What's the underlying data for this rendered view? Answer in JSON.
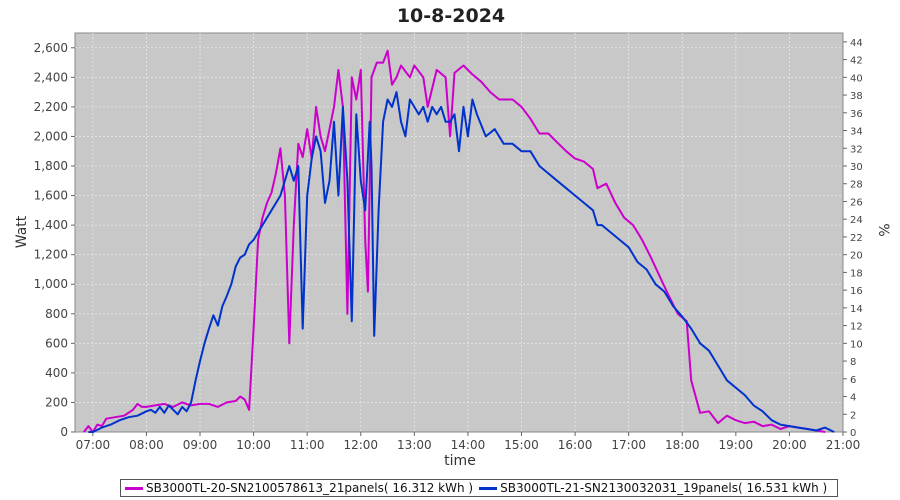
{
  "chart_data": {
    "type": "line",
    "title": "10-8-2024",
    "xlabel": "time",
    "ylabel": "Watt",
    "y2label": "%",
    "xlim": [
      "06:40",
      "21:00"
    ],
    "ylim": [
      0,
      2700
    ],
    "y2lim": [
      0,
      45
    ],
    "x_ticks": [
      "07:00",
      "08:00",
      "09:00",
      "10:00",
      "11:00",
      "12:00",
      "13:00",
      "14:00",
      "15:00",
      "16:00",
      "17:00",
      "18:00",
      "19:00",
      "20:00",
      "21:00"
    ],
    "y_ticks": [
      "0",
      "200",
      "400",
      "600",
      "800",
      "1,000",
      "1,200",
      "1,400",
      "1,600",
      "1,800",
      "2,000",
      "2,200",
      "2,400",
      "2,600"
    ],
    "y2_ticks": [
      "0",
      "2",
      "4",
      "6",
      "8",
      "10",
      "12",
      "14",
      "16",
      "18",
      "20",
      "22",
      "24",
      "26",
      "28",
      "30",
      "32",
      "34",
      "36",
      "38",
      "40",
      "42",
      "44"
    ],
    "grid": true,
    "legend_position": "bottom",
    "series": [
      {
        "name": "SB3000TL-20-SN2100578613_21panels( 16.312 kWh )",
        "color": "#cc00cc",
        "points": [
          [
            "06:50",
            0
          ],
          [
            "06:55",
            40
          ],
          [
            "07:00",
            0
          ],
          [
            "07:05",
            50
          ],
          [
            "07:10",
            40
          ],
          [
            "07:15",
            90
          ],
          [
            "07:25",
            100
          ],
          [
            "07:35",
            110
          ],
          [
            "07:45",
            150
          ],
          [
            "07:50",
            190
          ],
          [
            "07:55",
            170
          ],
          [
            "08:00",
            170
          ],
          [
            "08:10",
            180
          ],
          [
            "08:20",
            190
          ],
          [
            "08:30",
            170
          ],
          [
            "08:40",
            200
          ],
          [
            "08:50",
            180
          ],
          [
            "09:00",
            190
          ],
          [
            "09:10",
            190
          ],
          [
            "09:20",
            170
          ],
          [
            "09:30",
            200
          ],
          [
            "09:40",
            210
          ],
          [
            "09:45",
            240
          ],
          [
            "09:50",
            220
          ],
          [
            "09:55",
            150
          ],
          [
            "10:00",
            700
          ],
          [
            "10:05",
            1300
          ],
          [
            "10:10",
            1450
          ],
          [
            "10:15",
            1550
          ],
          [
            "10:20",
            1620
          ],
          [
            "10:25",
            1750
          ],
          [
            "10:30",
            1920
          ],
          [
            "10:35",
            1600
          ],
          [
            "10:40",
            600
          ],
          [
            "10:45",
            1400
          ],
          [
            "10:50",
            1950
          ],
          [
            "10:55",
            1860
          ],
          [
            "11:00",
            2050
          ],
          [
            "11:05",
            1850
          ],
          [
            "11:10",
            2200
          ],
          [
            "11:15",
            2000
          ],
          [
            "11:20",
            1900
          ],
          [
            "11:25",
            2050
          ],
          [
            "11:30",
            2200
          ],
          [
            "11:35",
            2450
          ],
          [
            "11:40",
            2200
          ],
          [
            "11:45",
            800
          ],
          [
            "11:50",
            2400
          ],
          [
            "11:55",
            2250
          ],
          [
            "12:00",
            2450
          ],
          [
            "12:05",
            1300
          ],
          [
            "12:08",
            950
          ],
          [
            "12:12",
            2400
          ],
          [
            "12:18",
            2500
          ],
          [
            "12:25",
            2500
          ],
          [
            "12:30",
            2580
          ],
          [
            "12:35",
            2350
          ],
          [
            "12:40",
            2400
          ],
          [
            "12:45",
            2480
          ],
          [
            "12:55",
            2400
          ],
          [
            "13:00",
            2480
          ],
          [
            "13:10",
            2400
          ],
          [
            "13:15",
            2200
          ],
          [
            "13:25",
            2450
          ],
          [
            "13:35",
            2400
          ],
          [
            "13:40",
            2000
          ],
          [
            "13:45",
            2430
          ],
          [
            "13:55",
            2480
          ],
          [
            "14:05",
            2420
          ],
          [
            "14:15",
            2370
          ],
          [
            "14:25",
            2300
          ],
          [
            "14:35",
            2250
          ],
          [
            "14:50",
            2250
          ],
          [
            "15:00",
            2200
          ],
          [
            "15:10",
            2120
          ],
          [
            "15:20",
            2020
          ],
          [
            "15:30",
            2020
          ],
          [
            "15:40",
            1960
          ],
          [
            "15:50",
            1900
          ],
          [
            "16:00",
            1850
          ],
          [
            "16:10",
            1830
          ],
          [
            "16:20",
            1780
          ],
          [
            "16:25",
            1650
          ],
          [
            "16:35",
            1680
          ],
          [
            "16:45",
            1550
          ],
          [
            "16:55",
            1450
          ],
          [
            "17:05",
            1400
          ],
          [
            "17:15",
            1300
          ],
          [
            "17:25",
            1180
          ],
          [
            "17:35",
            1050
          ],
          [
            "17:45",
            920
          ],
          [
            "17:55",
            800
          ],
          [
            "18:05",
            750
          ],
          [
            "18:10",
            350
          ],
          [
            "18:20",
            130
          ],
          [
            "18:30",
            140
          ],
          [
            "18:40",
            60
          ],
          [
            "18:50",
            110
          ],
          [
            "19:00",
            80
          ],
          [
            "19:10",
            60
          ],
          [
            "19:20",
            70
          ],
          [
            "19:30",
            40
          ],
          [
            "19:40",
            50
          ],
          [
            "19:50",
            20
          ],
          [
            "20:00",
            40
          ],
          [
            "20:10",
            30
          ],
          [
            "20:20",
            20
          ],
          [
            "20:30",
            10
          ],
          [
            "20:40",
            0
          ]
        ]
      },
      {
        "name": "SB3000TL-21-SN2130032031_19panels( 16.531 kWh )",
        "color": "#0033cc",
        "points": [
          [
            "06:55",
            0
          ],
          [
            "07:00",
            0
          ],
          [
            "07:10",
            30
          ],
          [
            "07:20",
            50
          ],
          [
            "07:30",
            80
          ],
          [
            "07:40",
            100
          ],
          [
            "07:50",
            110
          ],
          [
            "08:00",
            140
          ],
          [
            "08:05",
            150
          ],
          [
            "08:10",
            130
          ],
          [
            "08:15",
            170
          ],
          [
            "08:20",
            130
          ],
          [
            "08:25",
            180
          ],
          [
            "08:30",
            150
          ],
          [
            "08:35",
            120
          ],
          [
            "08:40",
            170
          ],
          [
            "08:45",
            140
          ],
          [
            "08:50",
            200
          ],
          [
            "08:55",
            350
          ],
          [
            "09:00",
            480
          ],
          [
            "09:05",
            600
          ],
          [
            "09:10",
            700
          ],
          [
            "09:15",
            790
          ],
          [
            "09:20",
            720
          ],
          [
            "09:25",
            850
          ],
          [
            "09:30",
            920
          ],
          [
            "09:35",
            1000
          ],
          [
            "09:40",
            1120
          ],
          [
            "09:45",
            1180
          ],
          [
            "09:50",
            1200
          ],
          [
            "09:55",
            1270
          ],
          [
            "10:00",
            1300
          ],
          [
            "10:10",
            1400
          ],
          [
            "10:20",
            1500
          ],
          [
            "10:30",
            1600
          ],
          [
            "10:40",
            1800
          ],
          [
            "10:45",
            1700
          ],
          [
            "10:50",
            1800
          ],
          [
            "10:55",
            700
          ],
          [
            "11:00",
            1600
          ],
          [
            "11:05",
            1850
          ],
          [
            "11:10",
            2000
          ],
          [
            "11:15",
            1900
          ],
          [
            "11:20",
            1550
          ],
          [
            "11:25",
            1700
          ],
          [
            "11:30",
            2100
          ],
          [
            "11:35",
            1600
          ],
          [
            "11:40",
            2200
          ],
          [
            "11:45",
            1700
          ],
          [
            "11:50",
            750
          ],
          [
            "11:55",
            2150
          ],
          [
            "12:00",
            1700
          ],
          [
            "12:05",
            1500
          ],
          [
            "12:10",
            2100
          ],
          [
            "12:12",
            1800
          ],
          [
            "12:15",
            650
          ],
          [
            "12:20",
            1500
          ],
          [
            "12:25",
            2100
          ],
          [
            "12:30",
            2250
          ],
          [
            "12:35",
            2200
          ],
          [
            "12:40",
            2300
          ],
          [
            "12:45",
            2100
          ],
          [
            "12:50",
            2000
          ],
          [
            "12:55",
            2250
          ],
          [
            "13:00",
            2200
          ],
          [
            "13:05",
            2150
          ],
          [
            "13:10",
            2200
          ],
          [
            "13:15",
            2100
          ],
          [
            "13:20",
            2200
          ],
          [
            "13:25",
            2150
          ],
          [
            "13:30",
            2200
          ],
          [
            "13:35",
            2100
          ],
          [
            "13:40",
            2100
          ],
          [
            "13:45",
            2150
          ],
          [
            "13:50",
            1900
          ],
          [
            "13:55",
            2200
          ],
          [
            "14:00",
            2000
          ],
          [
            "14:05",
            2250
          ],
          [
            "14:10",
            2150
          ],
          [
            "14:20",
            2000
          ],
          [
            "14:30",
            2050
          ],
          [
            "14:40",
            1950
          ],
          [
            "14:50",
            1950
          ],
          [
            "15:00",
            1900
          ],
          [
            "15:10",
            1900
          ],
          [
            "15:20",
            1800
          ],
          [
            "15:30",
            1750
          ],
          [
            "15:40",
            1700
          ],
          [
            "15:50",
            1650
          ],
          [
            "16:00",
            1600
          ],
          [
            "16:10",
            1550
          ],
          [
            "16:20",
            1500
          ],
          [
            "16:25",
            1400
          ],
          [
            "16:30",
            1400
          ],
          [
            "16:40",
            1350
          ],
          [
            "16:50",
            1300
          ],
          [
            "17:00",
            1250
          ],
          [
            "17:10",
            1150
          ],
          [
            "17:20",
            1100
          ],
          [
            "17:30",
            1000
          ],
          [
            "17:40",
            950
          ],
          [
            "17:50",
            850
          ],
          [
            "18:00",
            780
          ],
          [
            "18:10",
            700
          ],
          [
            "18:20",
            600
          ],
          [
            "18:30",
            550
          ],
          [
            "18:40",
            450
          ],
          [
            "18:50",
            350
          ],
          [
            "19:00",
            300
          ],
          [
            "19:10",
            250
          ],
          [
            "19:20",
            180
          ],
          [
            "19:30",
            140
          ],
          [
            "19:40",
            80
          ],
          [
            "19:50",
            50
          ],
          [
            "20:00",
            40
          ],
          [
            "20:10",
            30
          ],
          [
            "20:20",
            20
          ],
          [
            "20:30",
            10
          ],
          [
            "20:40",
            30
          ],
          [
            "20:50",
            0
          ]
        ]
      }
    ]
  }
}
